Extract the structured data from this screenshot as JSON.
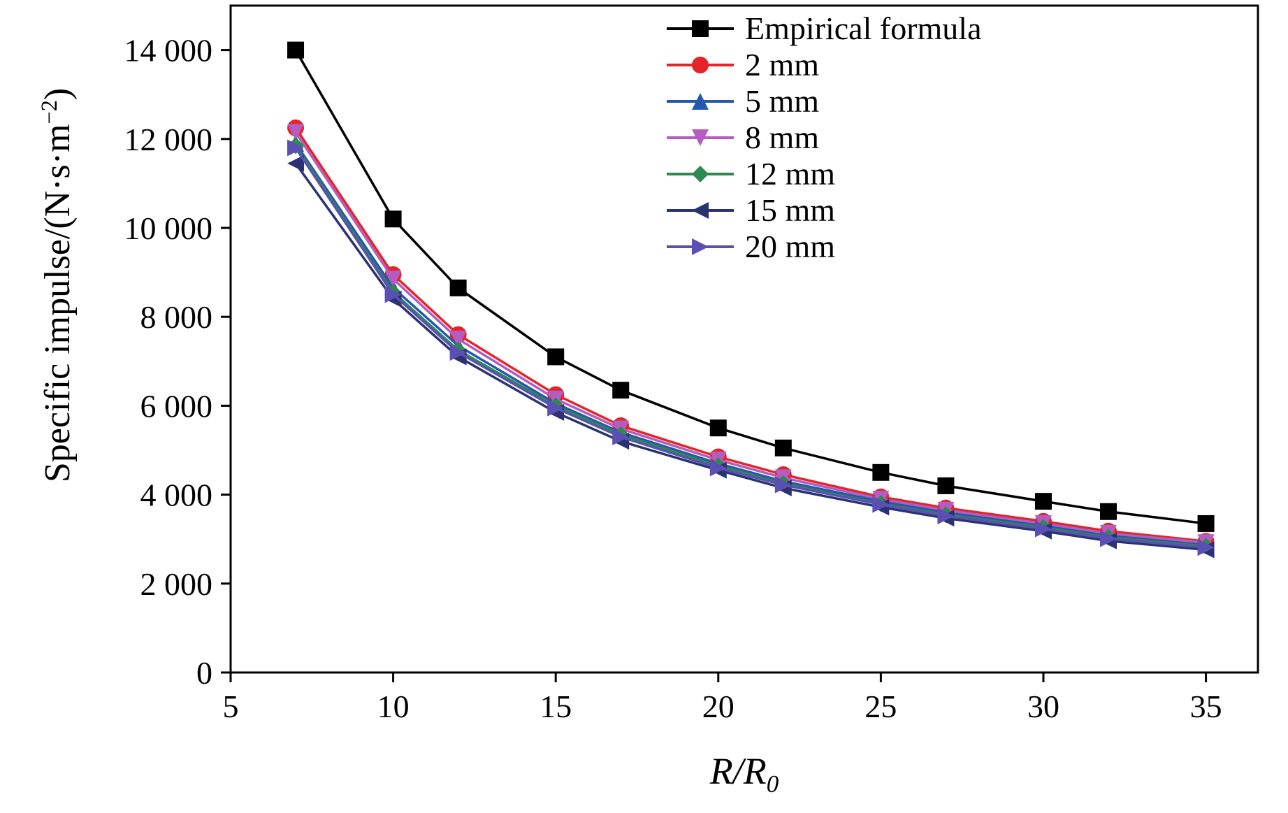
{
  "chart_data": {
    "type": "line",
    "title": "",
    "xlabel": "R/R₀",
    "xlabel_parts": {
      "pre": "R/R",
      "sub": "0"
    },
    "ylabel": "Specific impulse/(N·s·m⁻²)",
    "ylabel_parts": {
      "pre": "Specific impulse/(N·s·m",
      "sup": "−2",
      "post": ")"
    },
    "xlim": [
      5,
      36.6
    ],
    "ylim": [
      0,
      15000
    ],
    "grid": false,
    "legend_position": "top-right",
    "x_ticks": [
      {
        "v": 5,
        "label": "5"
      },
      {
        "v": 10,
        "label": "10"
      },
      {
        "v": 15,
        "label": "15"
      },
      {
        "v": 20,
        "label": "20"
      },
      {
        "v": 25,
        "label": "25"
      },
      {
        "v": 30,
        "label": "30"
      },
      {
        "v": 35,
        "label": "35"
      }
    ],
    "y_ticks": [
      {
        "v": 0,
        "label": "0"
      },
      {
        "v": 2000,
        "label": "2 000"
      },
      {
        "v": 4000,
        "label": "4 000"
      },
      {
        "v": 6000,
        "label": "6 000"
      },
      {
        "v": 8000,
        "label": "8 000"
      },
      {
        "v": 10000,
        "label": "10 000"
      },
      {
        "v": 12000,
        "label": "12 000"
      },
      {
        "v": 14000,
        "label": "14 000"
      }
    ],
    "x": [
      7,
      10,
      12,
      15,
      17,
      20,
      22,
      25,
      27,
      30,
      32,
      35
    ],
    "series": [
      {
        "name": "Empirical formula",
        "color": "#000000",
        "marker": "square",
        "values": [
          14000,
          10200,
          8650,
          7100,
          6350,
          5500,
          5050,
          4500,
          4200,
          3850,
          3620,
          3350
        ]
      },
      {
        "name": "2 mm",
        "color": "#e4242a",
        "marker": "circle",
        "values": [
          12250,
          8950,
          7600,
          6250,
          5550,
          4850,
          4450,
          3950,
          3700,
          3400,
          3180,
          2950
        ]
      },
      {
        "name": "5 mm",
        "color": "#2457b0",
        "marker": "triangle-up",
        "values": [
          11900,
          8650,
          7350,
          6050,
          5400,
          4700,
          4300,
          3850,
          3600,
          3300,
          3080,
          2870
        ]
      },
      {
        "name": "8 mm",
        "color": "#b45cc0",
        "marker": "triangle-down",
        "values": [
          12150,
          8850,
          7500,
          6150,
          5480,
          4780,
          4380,
          3900,
          3650,
          3350,
          3130,
          2920
        ]
      },
      {
        "name": "12 mm",
        "color": "#2c8a4e",
        "marker": "diamond",
        "values": [
          11850,
          8550,
          7250,
          6000,
          5350,
          4650,
          4250,
          3800,
          3550,
          3260,
          3040,
          2840
        ]
      },
      {
        "name": "15 mm",
        "color": "#2b3272",
        "marker": "triangle-left",
        "values": [
          11450,
          8400,
          7100,
          5850,
          5200,
          4550,
          4150,
          3720,
          3470,
          3180,
          2960,
          2760
        ]
      },
      {
        "name": "20 mm",
        "color": "#5a50b4",
        "marker": "triangle-right",
        "values": [
          11800,
          8500,
          7200,
          5950,
          5300,
          4600,
          4220,
          3780,
          3520,
          3230,
          3010,
          2810
        ]
      }
    ]
  }
}
